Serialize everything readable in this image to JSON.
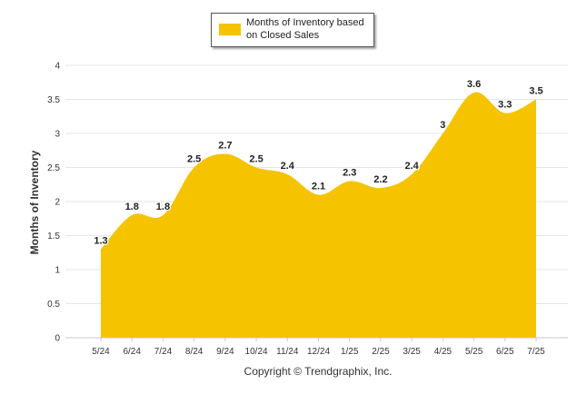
{
  "chart_data": {
    "type": "area",
    "categories": [
      "5/24",
      "6/24",
      "7/24",
      "8/24",
      "9/24",
      "10/24",
      "11/24",
      "12/24",
      "1/25",
      "2/25",
      "3/25",
      "4/25",
      "5/25",
      "6/25",
      "7/25"
    ],
    "series": [
      {
        "name": "Months of Inventory based on Closed Sales",
        "values": [
          1.3,
          1.8,
          1.8,
          2.5,
          2.7,
          2.5,
          2.4,
          2.1,
          2.3,
          2.2,
          2.4,
          3,
          3.6,
          3.3,
          3.5
        ]
      }
    ],
    "data_labels": [
      "1.3",
      "1.8",
      "1.8",
      "2.5",
      "2.7",
      "2.5",
      "2.4",
      "2.1",
      "2.3",
      "2.2",
      "2.4",
      "3",
      "3.6",
      "3.3",
      "3.5"
    ],
    "ylabel": "Months of Inventory",
    "xlabel": "",
    "ylim": [
      0,
      4
    ],
    "yticks": [
      "0",
      "0.5",
      "1",
      "1.5",
      "2",
      "2.5",
      "3",
      "3.5",
      "4"
    ],
    "grid": true,
    "legend_position": "top-center",
    "color": "#f5c300",
    "footer": "Copyright © Trendgraphix, Inc."
  }
}
